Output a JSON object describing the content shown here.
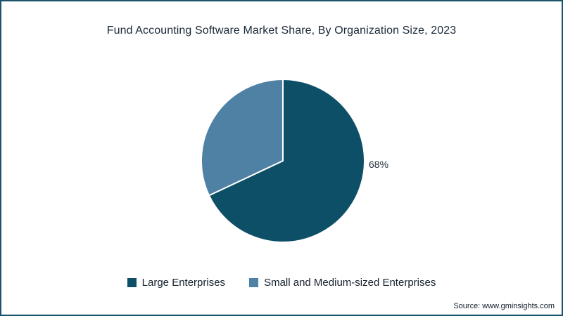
{
  "title": "Fund Accounting Software Market Share, By Organization Size, 2023",
  "source": "Source: www.gminsights.com",
  "colors": {
    "frame_border": "#1a536a",
    "slice_large": "#0c4f67",
    "slice_sme": "#4e81a3",
    "slice_divider": "#ffffff"
  },
  "chart_data": {
    "type": "pie",
    "title": "Fund Accounting Software Market Share, By Organization Size, 2023",
    "start_angle_deg": 0,
    "direction": "clockwise",
    "legend_position": "bottom",
    "slices": [
      {
        "label": "Large Enterprises",
        "value": 68,
        "color": "#0c4f67",
        "data_label": "68%"
      },
      {
        "label": "Small and Medium-sized Enterprises",
        "value": 32,
        "color": "#4e81a3",
        "data_label": ""
      }
    ]
  },
  "legend": {
    "items": [
      {
        "label": "Large Enterprises"
      },
      {
        "label": "Small and Medium-sized Enterprises"
      }
    ]
  }
}
